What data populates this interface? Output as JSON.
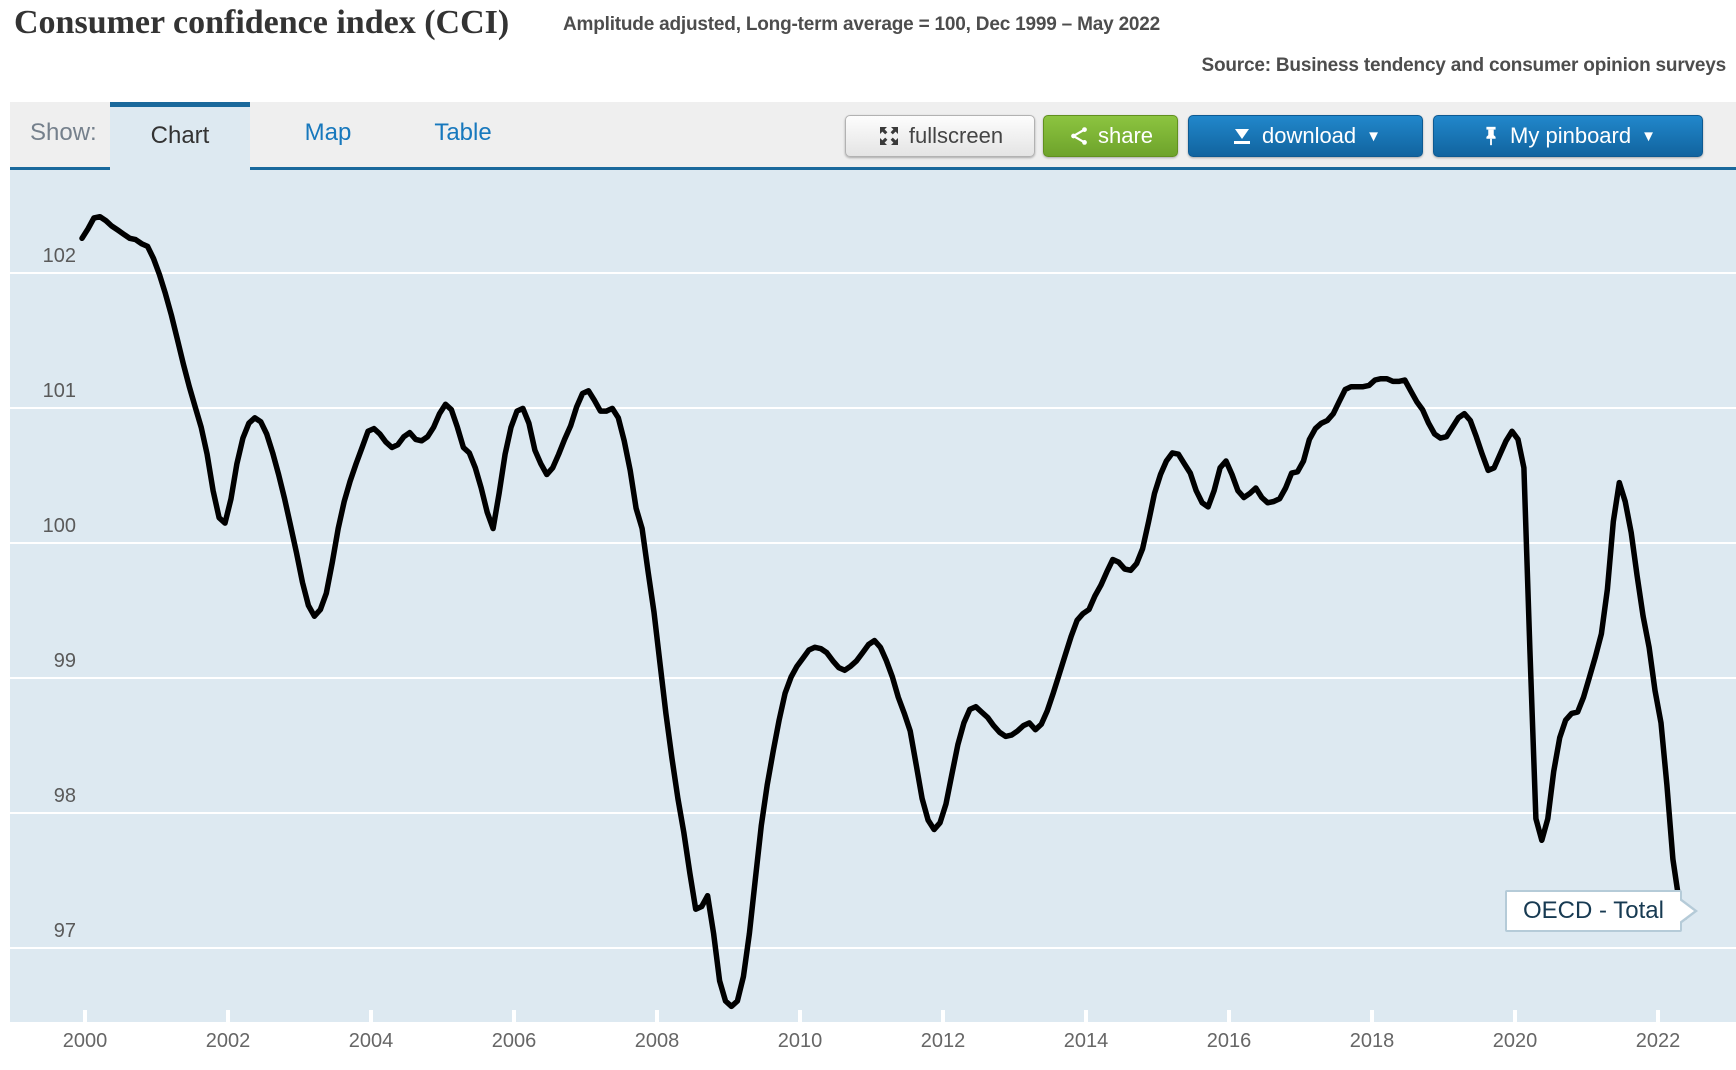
{
  "header": {
    "title": "Consumer confidence index (CCI)",
    "subtitle": "Amplitude adjusted, Long-term average = 100, Dec 1999 – May 2022",
    "source": "Source: Business tendency and consumer opinion surveys"
  },
  "toolbar": {
    "show_label": "Show:",
    "tabs": [
      {
        "id": "chart",
        "label": "Chart",
        "active": true
      },
      {
        "id": "map",
        "label": "Map",
        "active": false
      },
      {
        "id": "table",
        "label": "Table",
        "active": false
      }
    ],
    "buttons": {
      "fullscreen_label": "fullscreen",
      "share_label": "share",
      "download_label": "download",
      "pinboard_label": "My pinboard",
      "download_caret": "▼",
      "pinboard_caret": "▼"
    }
  },
  "colors": {
    "accent_blue": "#1a699c",
    "link_blue": "#1778bd",
    "button_blue": "#11649f",
    "button_green": "#76aa28",
    "chart_background": "#dde9f1",
    "gridline": "#ffffff",
    "line": "#000000"
  },
  "tooltip": {
    "label": "OECD - Total"
  },
  "chart_data": {
    "type": "line",
    "title": "Consumer confidence index (CCI)",
    "subtitle": "Amplitude adjusted, Long-term average = 100, Dec 1999 – May 2022",
    "series_name": "OECD - Total",
    "frequency": "monthly",
    "start": "1999-12",
    "end": "2022-05",
    "xlabel": "",
    "ylabel": "",
    "ylim": [
      96.45,
      102.8
    ],
    "yticks": [
      97,
      98,
      99,
      100,
      101,
      102
    ],
    "xticks": [
      2000,
      2002,
      2004,
      2006,
      2008,
      2010,
      2012,
      2014,
      2016,
      2018,
      2020,
      2022
    ],
    "grid": true,
    "legend_position": "tooltip-on-line",
    "values": [
      102.25,
      102.32,
      102.4,
      102.41,
      102.38,
      102.34,
      102.31,
      102.28,
      102.25,
      102.24,
      102.21,
      102.19,
      102.1,
      101.98,
      101.84,
      101.68,
      101.5,
      101.32,
      101.15,
      101.0,
      100.85,
      100.65,
      100.38,
      100.18,
      100.14,
      100.32,
      100.58,
      100.77,
      100.88,
      100.92,
      100.89,
      100.8,
      100.66,
      100.5,
      100.32,
      100.12,
      99.92,
      99.7,
      99.53,
      99.45,
      99.5,
      99.62,
      99.85,
      100.1,
      100.3,
      100.45,
      100.58,
      100.7,
      100.82,
      100.84,
      100.8,
      100.74,
      100.7,
      100.72,
      100.78,
      100.81,
      100.76,
      100.75,
      100.78,
      100.85,
      100.95,
      101.02,
      100.98,
      100.85,
      100.7,
      100.66,
      100.55,
      100.4,
      100.22,
      100.1,
      100.36,
      100.65,
      100.85,
      100.97,
      100.99,
      100.88,
      100.68,
      100.58,
      100.5,
      100.55,
      100.65,
      100.76,
      100.86,
      101.0,
      101.1,
      101.12,
      101.05,
      100.97,
      100.97,
      100.99,
      100.92,
      100.75,
      100.53,
      100.25,
      100.1,
      99.78,
      99.48,
      99.1,
      98.73,
      98.4,
      98.1,
      97.85,
      97.55,
      97.28,
      97.3,
      97.38,
      97.1,
      96.75,
      96.6,
      96.56,
      96.6,
      96.78,
      97.1,
      97.5,
      97.9,
      98.2,
      98.45,
      98.68,
      98.88,
      99.0,
      99.08,
      99.14,
      99.2,
      99.22,
      99.21,
      99.18,
      99.12,
      99.07,
      99.05,
      99.08,
      99.12,
      99.18,
      99.24,
      99.27,
      99.22,
      99.12,
      99.0,
      98.85,
      98.73,
      98.6,
      98.35,
      98.1,
      97.94,
      97.87,
      97.92,
      98.06,
      98.28,
      98.5,
      98.66,
      98.76,
      98.78,
      98.74,
      98.7,
      98.64,
      98.59,
      98.56,
      98.57,
      98.6,
      98.64,
      98.66,
      98.61,
      98.65,
      98.75,
      98.88,
      99.02,
      99.16,
      99.3,
      99.42,
      99.47,
      99.5,
      99.6,
      99.68,
      99.78,
      99.87,
      99.85,
      99.8,
      99.79,
      99.84,
      99.95,
      100.15,
      100.36,
      100.5,
      100.6,
      100.66,
      100.65,
      100.58,
      100.51,
      100.38,
      100.29,
      100.26,
      100.38,
      100.55,
      100.6,
      100.5,
      100.38,
      100.33,
      100.36,
      100.4,
      100.33,
      100.29,
      100.3,
      100.32,
      100.4,
      100.51,
      100.52,
      100.6,
      100.76,
      100.84,
      100.88,
      100.9,
      100.95,
      101.04,
      101.13,
      101.15,
      101.15,
      101.15,
      101.16,
      101.2,
      101.21,
      101.21,
      101.19,
      101.19,
      101.2,
      101.12,
      101.04,
      100.98,
      100.88,
      100.8,
      100.77,
      100.78,
      100.85,
      100.92,
      100.95,
      100.9,
      100.78,
      100.65,
      100.53,
      100.55,
      100.65,
      100.75,
      100.82,
      100.76,
      100.55,
      99.2,
      97.95,
      97.79,
      97.95,
      98.3,
      98.55,
      98.68,
      98.73,
      98.74,
      98.85,
      99.0,
      99.15,
      99.32,
      99.65,
      100.15,
      100.44,
      100.3,
      100.07,
      99.75,
      99.45,
      99.22,
      98.9,
      98.66,
      98.2,
      97.65,
      97.35,
      97.22
    ]
  }
}
